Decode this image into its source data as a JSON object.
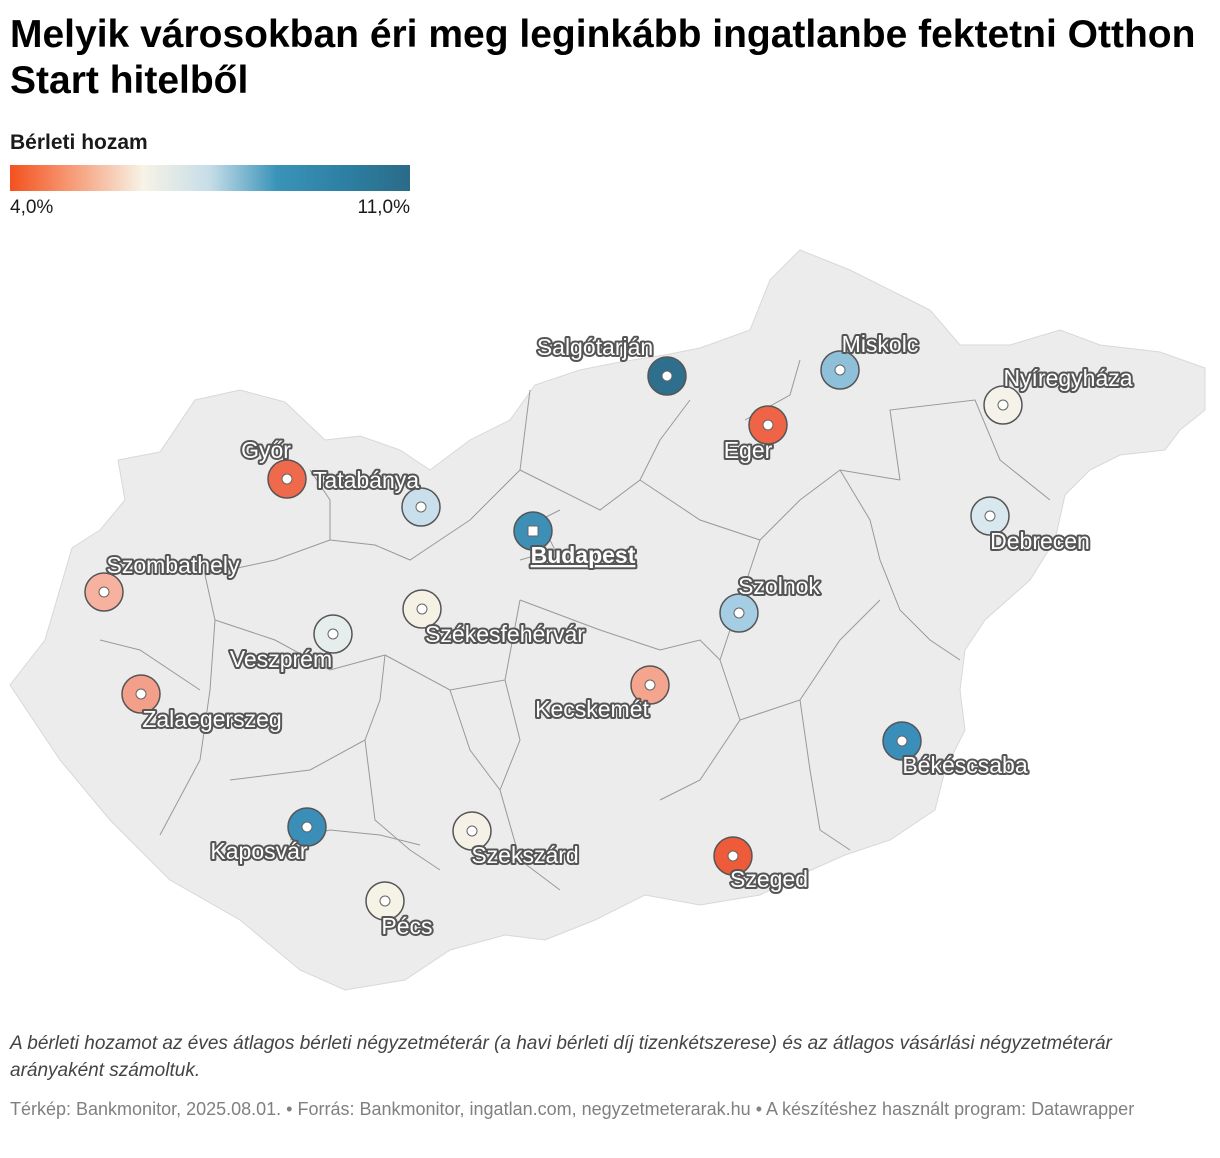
{
  "title": "Melyik városokban éri meg leginkább ingatlanbe fektetni Otthon Start hitelből",
  "legend": {
    "title": "Bérleti hozam",
    "min_label": "4,0%",
    "max_label": "11,0%",
    "min_value": 4.0,
    "max_value": 11.0,
    "gradient_stops": [
      "#f4511e",
      "#f6a17e",
      "#f7f3e6",
      "#c6dde8",
      "#3a94b8",
      "#2d80a3",
      "#2a6b88"
    ]
  },
  "cities": [
    {
      "name": "Salgótarján",
      "color": "#2e6f8e",
      "capital": false
    },
    {
      "name": "Miskolc",
      "color": "#8fc0d9",
      "capital": false
    },
    {
      "name": "Nyíregyháza",
      "color": "#f4f2e9",
      "capital": false
    },
    {
      "name": "Eger",
      "color": "#ef6446",
      "capital": false
    },
    {
      "name": "Győr",
      "color": "#ef6a4c",
      "capital": false
    },
    {
      "name": "Tatabánya",
      "color": "#c9e0ec",
      "capital": false
    },
    {
      "name": "Budapest",
      "color": "#3d8fb6",
      "capital": true
    },
    {
      "name": "Debrecen",
      "color": "#d9e8ee",
      "capital": false
    },
    {
      "name": "Szombathely",
      "color": "#f6b29f",
      "capital": false
    },
    {
      "name": "Székesfehérvár",
      "color": "#f5f1e4",
      "capital": false
    },
    {
      "name": "Szolnok",
      "color": "#a5cde3",
      "capital": false
    },
    {
      "name": "Veszprém",
      "color": "#e5eeec",
      "capital": false
    },
    {
      "name": "Zalaegerszeg",
      "color": "#f39f89",
      "capital": false
    },
    {
      "name": "Kecskemét",
      "color": "#f5a58e",
      "capital": false
    },
    {
      "name": "Békéscsaba",
      "color": "#3a8fba",
      "capital": false
    },
    {
      "name": "Kaposvár",
      "color": "#3a8eb8",
      "capital": false
    },
    {
      "name": "Szekszárd",
      "color": "#f5f1e6",
      "capital": false
    },
    {
      "name": "Szeged",
      "color": "#ee5b3a",
      "capital": false
    },
    {
      "name": "Pécs",
      "color": "#f5f2e6",
      "capital": false
    }
  ],
  "note": "A bérleti hozamot az éves átlagos bérleti négyzetméterár (a havi bérleti díj tizenkétszerese) és az átlagos vásárlási négyzetméterár arányaként számoltuk.",
  "footer": "Térkép: Bankmonitor, 2025.08.01. • Forrás: Bankmonitor, ingatlan.com, negyzetmeterarak.hu • A készítéshez használt program: Datawrapper"
}
